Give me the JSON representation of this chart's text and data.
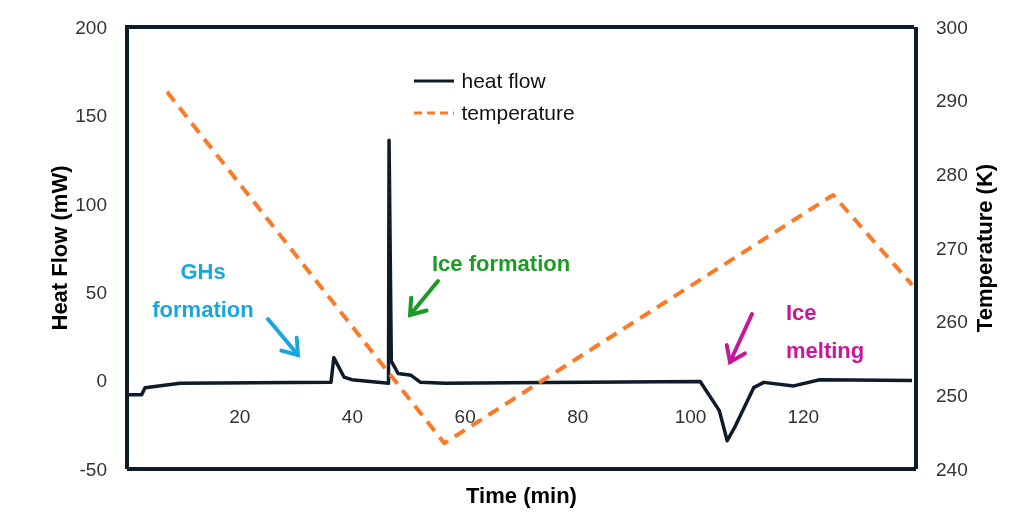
{
  "chart_data": {
    "type": "line",
    "xlabel": "Time (min)",
    "ylabel": "Heat Flow (mW)",
    "y2label": "Temperature (K)",
    "xlim": [
      0,
      140
    ],
    "xticks": [
      20,
      40,
      60,
      80,
      100,
      120
    ],
    "ylim": [
      -50,
      200
    ],
    "yticks": [
      -50,
      0,
      50,
      100,
      150,
      200
    ],
    "y2lim": [
      240,
      300
    ],
    "y2ticks": [
      240,
      250,
      260,
      270,
      280,
      290,
      300
    ],
    "legend": "top",
    "marker": "none",
    "series": [
      {
        "name": "heat flow",
        "color": "#0d1b2a",
        "line_style": "solid",
        "x": [
          0,
          2.6,
          3.2,
          9.4,
          36.2,
          36.7,
          38.5,
          39.9,
          46.4,
          46.5,
          46.9,
          48.1,
          50.4,
          52.1,
          56.4,
          101.7,
          105.1,
          106.5,
          107.9,
          111.2,
          113,
          118.3,
          122.9,
          139.3
        ],
        "values": [
          -8,
          -8,
          -4,
          -1.5,
          -1,
          13,
          2,
          0.5,
          -1.5,
          136,
          11,
          4,
          3,
          -1,
          -1.5,
          -0.5,
          -17,
          -34,
          -26,
          -4,
          -1,
          -3,
          0.5,
          0
        ]
      },
      {
        "name": "temperature",
        "color": "#fb7a28",
        "line_style": "dashed",
        "axis": "y2",
        "x": [
          7.1,
          56.3,
          125.3,
          139.3
        ],
        "values": [
          291.2,
          243.5,
          277.2,
          265
        ]
      }
    ],
    "annotations": [
      "GHs formation",
      "Ice formation",
      "Ice melting"
    ]
  }
}
